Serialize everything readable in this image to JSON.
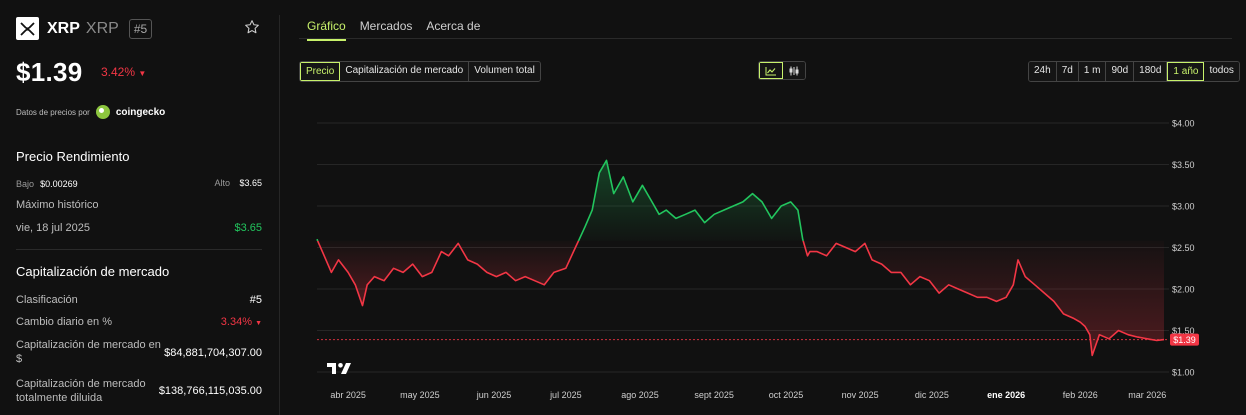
{
  "coin": {
    "name": "XRP",
    "symbol": "XRP",
    "rank": "#5",
    "price": "$1.39",
    "change_24h": "3.42%",
    "change_arrow": "▼"
  },
  "powered_by": {
    "label": "Datos de precios por",
    "source": "coingecko"
  },
  "performance": {
    "title": "Precio Rendimiento",
    "low_label": "Bajo",
    "low_value": "$0.00269",
    "high_label": "Alto",
    "high_value": "$3.65",
    "ath_label": "Máximo histórico",
    "ath_date": "vie, 18 jul 2025",
    "ath_value": "$3.65"
  },
  "market_cap": {
    "title": "Capitalización de mercado",
    "rank_label": "Clasificación",
    "rank_value": "#5",
    "daily_change_label": "Cambio diario en %",
    "daily_change_value": "3.34%",
    "daily_change_arrow": "▼",
    "cap_usd_label": "Capitalización de mercado en $",
    "cap_usd_value": "$84,881,704,307.00",
    "fdv_label": "Capitalización de mercado totalmente diluida",
    "fdv_value": "$138,766,115,035.00"
  },
  "tabs": [
    "Gráfico",
    "Mercados",
    "Acerca de"
  ],
  "metrics": [
    "Precio",
    "Capitalización de mercado",
    "Volumen total"
  ],
  "chart_type_icons": [
    "line-chart-icon",
    "candlestick-icon"
  ],
  "ranges": [
    "24h",
    "7d",
    "1 m",
    "90d",
    "180d",
    "1 año",
    "todos"
  ],
  "active_range": "1 año",
  "colors": {
    "accent": "#c8f26b",
    "up": "#22c55e",
    "down": "#f23645",
    "bg": "#111111"
  },
  "chart_data": {
    "type": "line",
    "yticks": [
      "$4.00",
      "$3.50",
      "$3.00",
      "$2.50",
      "$2.00",
      "$1.50",
      "$1.00"
    ],
    "ylim": [
      1.0,
      4.0
    ],
    "xticks": [
      "abr 2025",
      "may 2025",
      "jun 2025",
      "jul 2025",
      "ago 2025",
      "sept 2025",
      "oct 2025",
      "nov 2025",
      "dic 2025",
      "ene 2026",
      "feb 2026",
      "mar 2026"
    ],
    "bold_xtick": "ene 2026",
    "baseline": 2.58,
    "current_label": "$1.39",
    "current_value": 1.39,
    "x": [
      "2025-03-19",
      "2025-03-22",
      "2025-03-25",
      "2025-03-28",
      "2025-04-01",
      "2025-04-04",
      "2025-04-07",
      "2025-04-09",
      "2025-04-12",
      "2025-04-16",
      "2025-04-20",
      "2025-04-24",
      "2025-04-28",
      "2025-05-02",
      "2025-05-06",
      "2025-05-10",
      "2025-05-13",
      "2025-05-17",
      "2025-05-21",
      "2025-05-25",
      "2025-05-29",
      "2025-06-02",
      "2025-06-06",
      "2025-06-10",
      "2025-06-14",
      "2025-06-18",
      "2025-06-22",
      "2025-06-26",
      "2025-07-01",
      "2025-07-05",
      "2025-07-09",
      "2025-07-12",
      "2025-07-15",
      "2025-07-18",
      "2025-07-21",
      "2025-07-25",
      "2025-07-29",
      "2025-08-02",
      "2025-08-06",
      "2025-08-09",
      "2025-08-12",
      "2025-08-16",
      "2025-08-20",
      "2025-08-24",
      "2025-08-28",
      "2025-09-01",
      "2025-09-05",
      "2025-09-09",
      "2025-09-13",
      "2025-09-17",
      "2025-09-21",
      "2025-09-25",
      "2025-09-29",
      "2025-10-03",
      "2025-10-06",
      "2025-10-08",
      "2025-10-10",
      "2025-10-11",
      "2025-10-14",
      "2025-10-18",
      "2025-10-22",
      "2025-10-26",
      "2025-10-30",
      "2025-11-03",
      "2025-11-06",
      "2025-11-10",
      "2025-11-14",
      "2025-11-18",
      "2025-11-22",
      "2025-11-26",
      "2025-11-30",
      "2025-12-04",
      "2025-12-08",
      "2025-12-12",
      "2025-12-16",
      "2025-12-20",
      "2025-12-24",
      "2025-12-28",
      "2026-01-01",
      "2026-01-04",
      "2026-01-06",
      "2026-01-09",
      "2026-01-13",
      "2026-01-17",
      "2026-01-21",
      "2026-01-25",
      "2026-01-29",
      "2026-02-01",
      "2026-02-03",
      "2026-02-05",
      "2026-02-06",
      "2026-02-09",
      "2026-02-13",
      "2026-02-17",
      "2026-02-21",
      "2026-02-25",
      "2026-03-01",
      "2026-03-05",
      "2026-03-08"
    ],
    "y": [
      2.6,
      2.4,
      2.2,
      2.35,
      2.2,
      2.05,
      1.8,
      2.05,
      2.15,
      2.1,
      2.25,
      2.2,
      2.3,
      2.15,
      2.2,
      2.45,
      2.4,
      2.55,
      2.35,
      2.3,
      2.2,
      2.15,
      2.2,
      2.1,
      2.15,
      2.1,
      2.05,
      2.2,
      2.25,
      2.5,
      2.75,
      2.95,
      3.4,
      3.55,
      3.15,
      3.35,
      3.05,
      3.25,
      3.05,
      2.9,
      2.95,
      2.85,
      2.9,
      2.95,
      2.8,
      2.9,
      2.95,
      3.0,
      3.05,
      3.15,
      3.05,
      2.85,
      3.0,
      3.05,
      2.95,
      2.6,
      2.4,
      2.45,
      2.45,
      2.4,
      2.55,
      2.5,
      2.45,
      2.55,
      2.35,
      2.3,
      2.2,
      2.2,
      2.05,
      2.15,
      2.1,
      1.95,
      2.05,
      2.0,
      1.95,
      1.9,
      1.9,
      1.85,
      1.9,
      2.05,
      2.35,
      2.15,
      2.05,
      1.95,
      1.85,
      1.7,
      1.65,
      1.6,
      1.55,
      1.45,
      1.2,
      1.45,
      1.4,
      1.5,
      1.45,
      1.42,
      1.4,
      1.38,
      1.39
    ]
  }
}
